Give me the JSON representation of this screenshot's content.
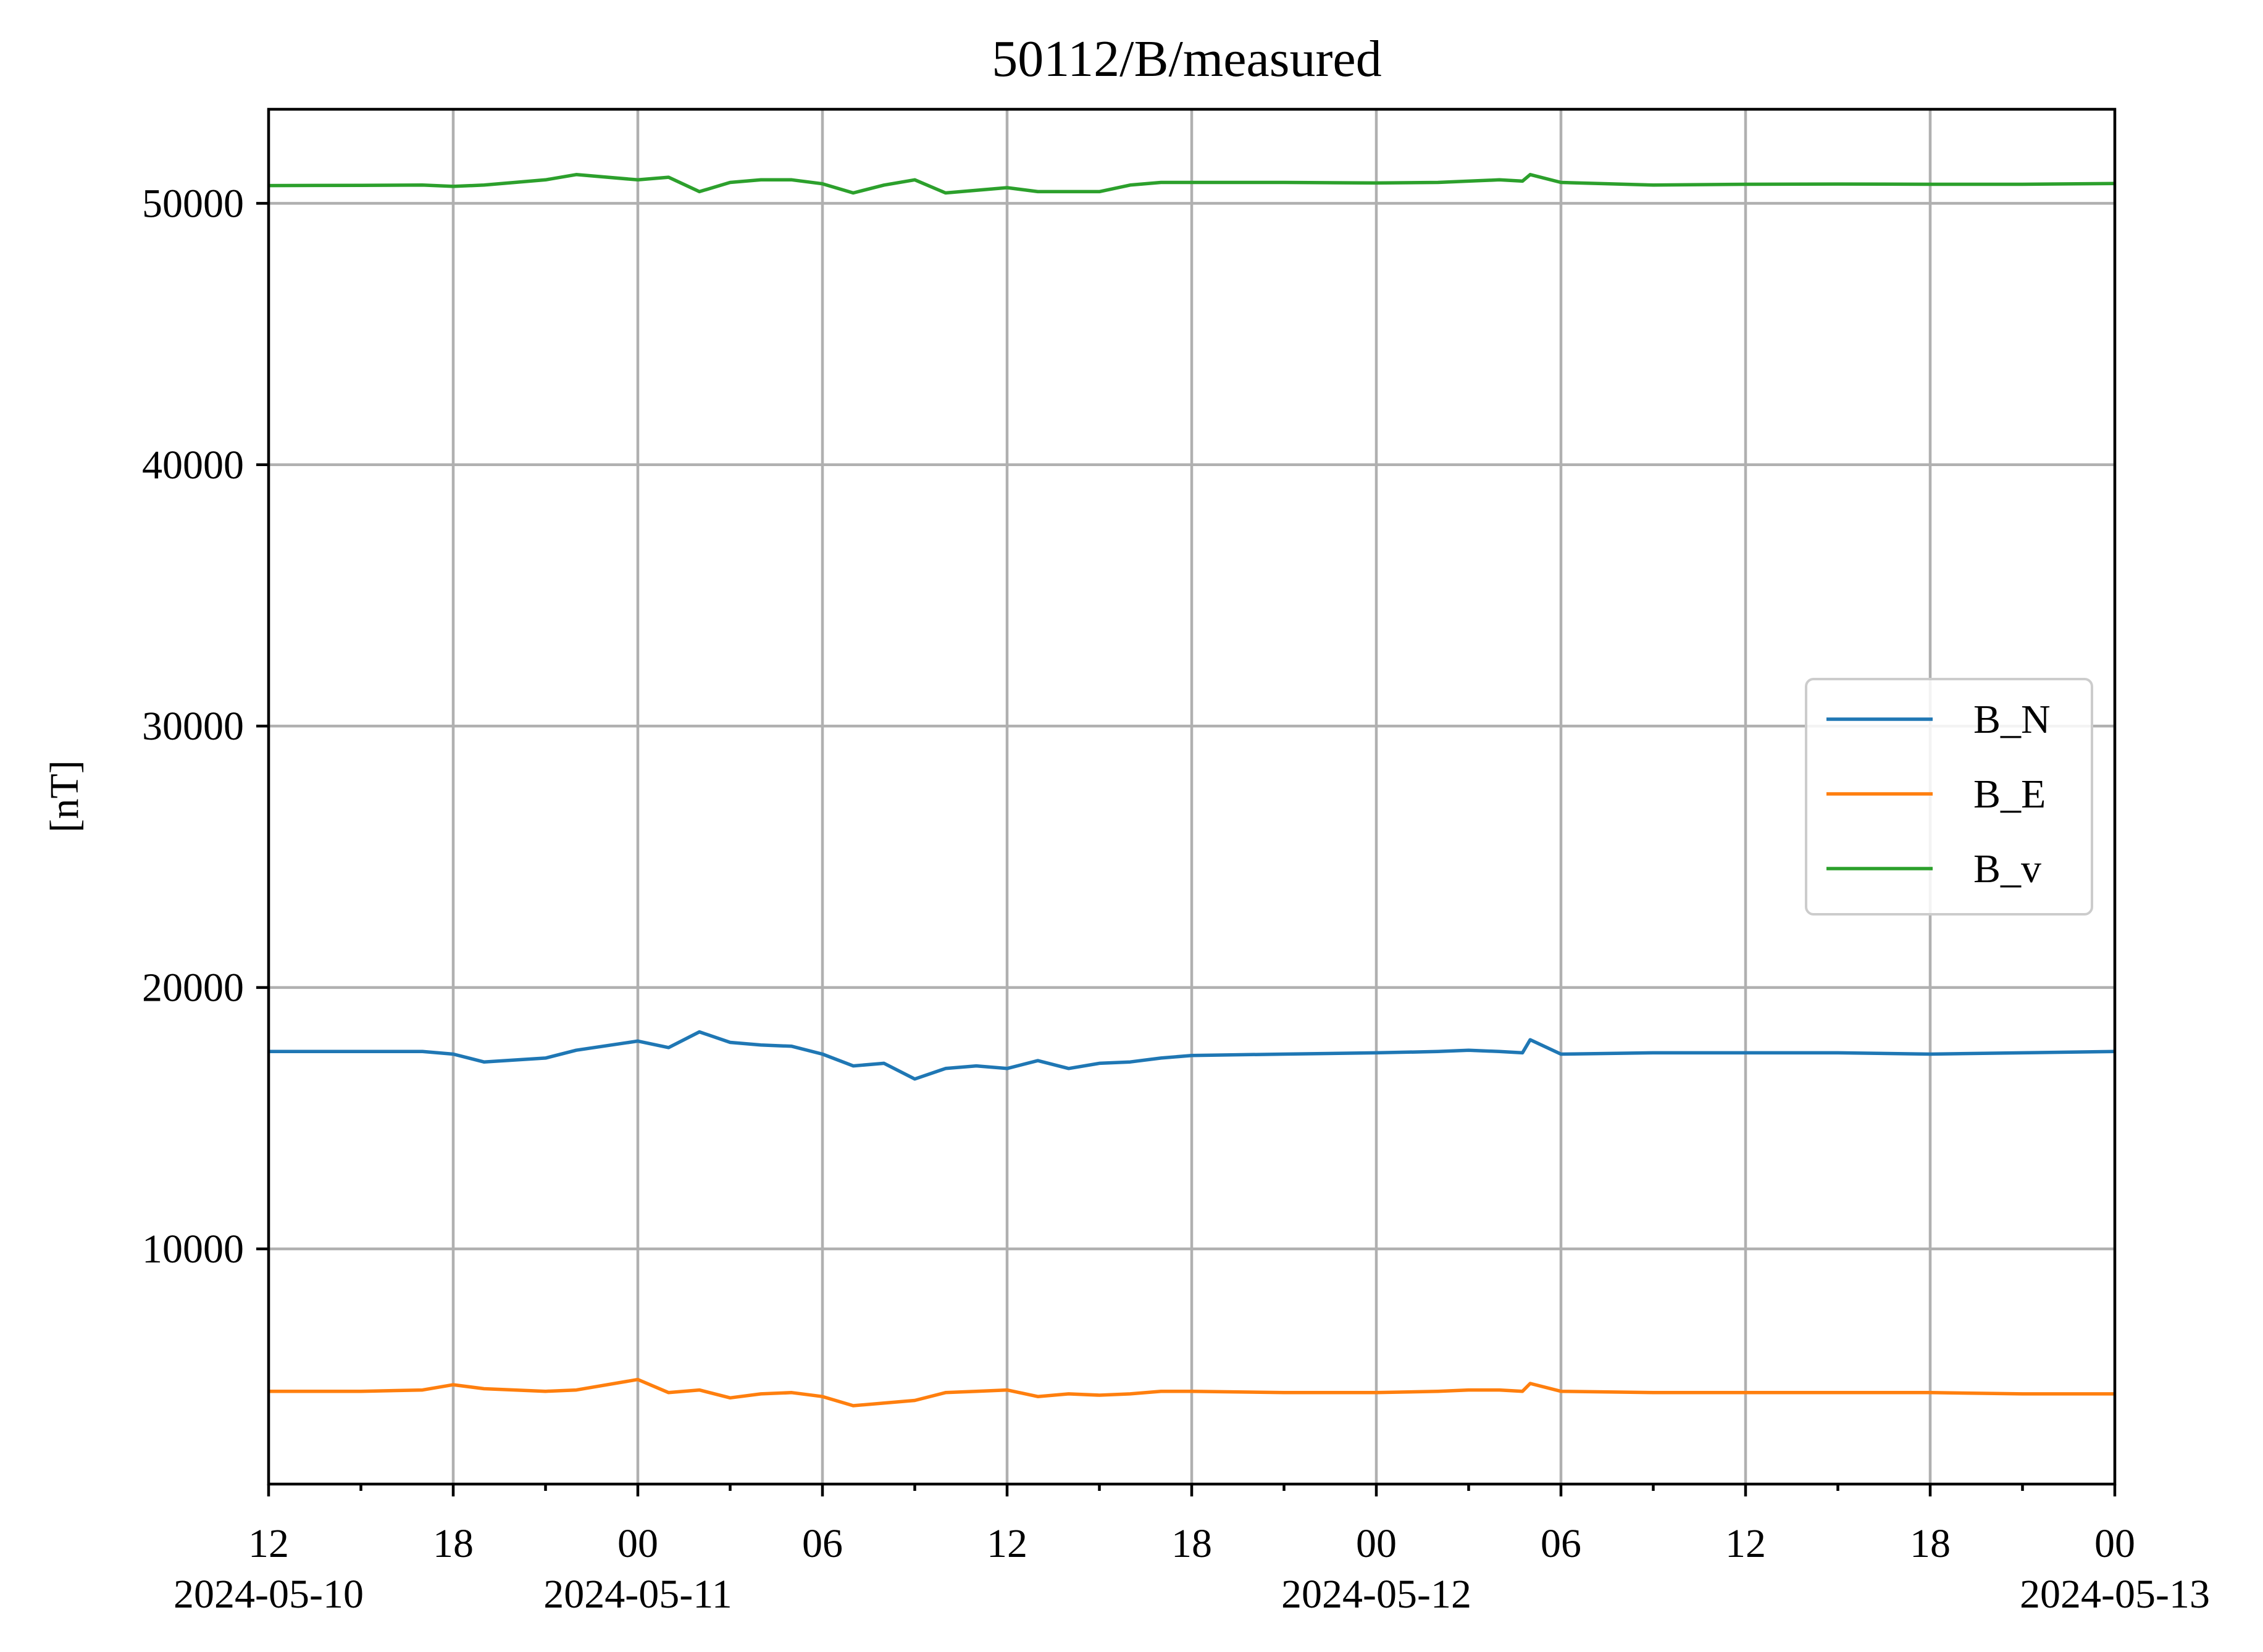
{
  "chart_data": {
    "type": "line",
    "title": "50112/B/measured",
    "xlabel": "",
    "ylabel": "[nT]",
    "xlim": [
      "2024-05-10 12:00",
      "2024-05-13 00:00"
    ],
    "ylim": [
      1000,
      53600
    ],
    "grid": true,
    "legend_position": "center-right",
    "yticks": [
      10000,
      20000,
      30000,
      40000,
      50000
    ],
    "ytick_labels": [
      "10000",
      "20000",
      "30000",
      "40000",
      "50000"
    ],
    "xticks": [
      {
        "time": "2024-05-10 12:00",
        "label": "12",
        "date": "2024-05-10"
      },
      {
        "time": "2024-05-10 18:00",
        "label": "18",
        "date": ""
      },
      {
        "time": "2024-05-11 00:00",
        "label": "00",
        "date": "2024-05-11"
      },
      {
        "time": "2024-05-11 06:00",
        "label": "06",
        "date": ""
      },
      {
        "time": "2024-05-11 12:00",
        "label": "12",
        "date": ""
      },
      {
        "time": "2024-05-11 18:00",
        "label": "18",
        "date": ""
      },
      {
        "time": "2024-05-12 00:00",
        "label": "00",
        "date": "2024-05-12"
      },
      {
        "time": "2024-05-12 06:00",
        "label": "06",
        "date": ""
      },
      {
        "time": "2024-05-12 12:00",
        "label": "12",
        "date": ""
      },
      {
        "time": "2024-05-12 18:00",
        "label": "18",
        "date": ""
      },
      {
        "time": "2024-05-13 00:00",
        "label": "00",
        "date": "2024-05-13"
      }
    ],
    "x": [
      "2024-05-10 12:00",
      "2024-05-10 15:00",
      "2024-05-10 17:00",
      "2024-05-10 18:00",
      "2024-05-10 19:00",
      "2024-05-10 21:00",
      "2024-05-10 22:00",
      "2024-05-11 00:00",
      "2024-05-11 01:00",
      "2024-05-11 02:00",
      "2024-05-11 03:00",
      "2024-05-11 04:00",
      "2024-05-11 05:00",
      "2024-05-11 06:00",
      "2024-05-11 07:00",
      "2024-05-11 08:00",
      "2024-05-11 09:00",
      "2024-05-11 10:00",
      "2024-05-11 11:00",
      "2024-05-11 12:00",
      "2024-05-11 13:00",
      "2024-05-11 14:00",
      "2024-05-11 15:00",
      "2024-05-11 16:00",
      "2024-05-11 17:00",
      "2024-05-11 18:00",
      "2024-05-11 21:00",
      "2024-05-12 00:00",
      "2024-05-12 02:00",
      "2024-05-12 03:00",
      "2024-05-12 04:00",
      "2024-05-12 04:45",
      "2024-05-12 05:00",
      "2024-05-12 06:00",
      "2024-05-12 09:00",
      "2024-05-12 12:00",
      "2024-05-12 15:00",
      "2024-05-12 18:00",
      "2024-05-12 21:00",
      "2024-05-13 00:00"
    ],
    "series": [
      {
        "name": "B_N",
        "color": "#1f77b4",
        "values": [
          17550,
          17550,
          17550,
          17450,
          17150,
          17300,
          17600,
          17950,
          17700,
          18300,
          17900,
          17800,
          17750,
          17450,
          17000,
          17100,
          16500,
          16900,
          17000,
          16900,
          17200,
          16900,
          17100,
          17150,
          17300,
          17400,
          17450,
          17500,
          17550,
          17600,
          17550,
          17500,
          18000,
          17450,
          17500,
          17500,
          17500,
          17450,
          17500,
          17550
        ]
      },
      {
        "name": "B_E",
        "color": "#ff7f0e",
        "values": [
          4550,
          4550,
          4600,
          4800,
          4650,
          4550,
          4600,
          5000,
          4500,
          4600,
          4300,
          4450,
          4500,
          4350,
          4000,
          4100,
          4200,
          4500,
          4550,
          4600,
          4350,
          4450,
          4400,
          4450,
          4550,
          4550,
          4500,
          4500,
          4550,
          4600,
          4600,
          4550,
          4850,
          4550,
          4500,
          4500,
          4500,
          4500,
          4450,
          4450
        ]
      },
      {
        "name": "B_v",
        "color": "#2ca02c",
        "values": [
          50680,
          50690,
          50700,
          50650,
          50700,
          50900,
          51100,
          50900,
          51000,
          50450,
          50800,
          50900,
          50900,
          50750,
          50400,
          50700,
          50900,
          50400,
          50500,
          50600,
          50450,
          50450,
          50450,
          50700,
          50800,
          50800,
          50800,
          50780,
          50800,
          50850,
          50900,
          50850,
          51100,
          50800,
          50700,
          50730,
          50740,
          50730,
          50730,
          50760
        ]
      }
    ]
  }
}
